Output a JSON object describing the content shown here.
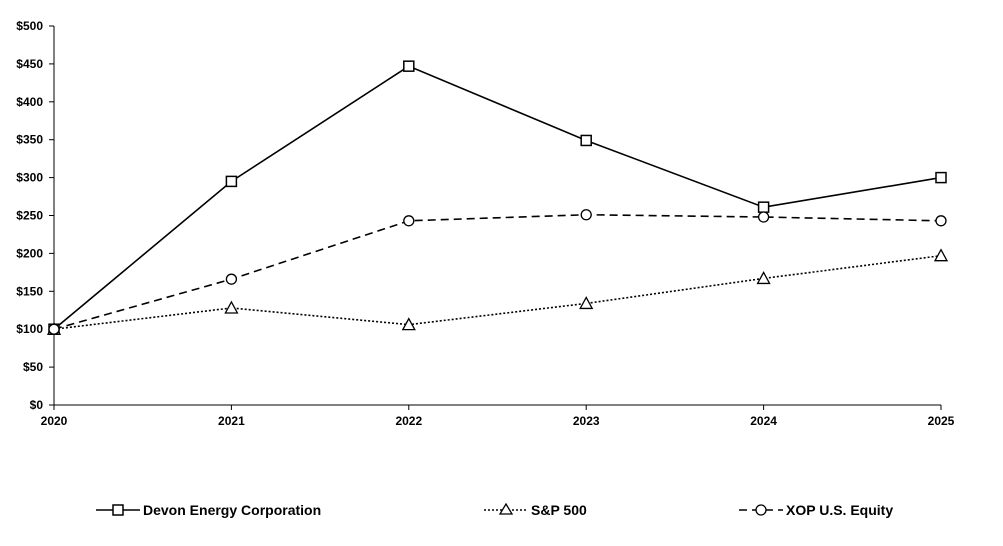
{
  "chart_data": {
    "type": "line",
    "categories": [
      "2020",
      "2021",
      "2022",
      "2023",
      "2024",
      "2025"
    ],
    "y_ticks": [
      "$0",
      "$50",
      "$100",
      "$150",
      "$200",
      "$250",
      "$300",
      "$350",
      "$400",
      "$450",
      "$500"
    ],
    "ylim": [
      0,
      500
    ],
    "grid": false,
    "legend_placement": "bottom",
    "series": [
      {
        "name": "Devon Energy Corporation",
        "marker": "square",
        "dash": "solid",
        "values": [
          100,
          295,
          447,
          349,
          261,
          300
        ]
      },
      {
        "name": "S&P 500",
        "marker": "triangle",
        "dash": "dotted",
        "values": [
          100,
          128,
          106,
          134,
          167,
          197
        ]
      },
      {
        "name": "XOP U.S. Equity",
        "marker": "circle",
        "dash": "dashed",
        "values": [
          100,
          166,
          243,
          251,
          248,
          243
        ]
      }
    ]
  }
}
